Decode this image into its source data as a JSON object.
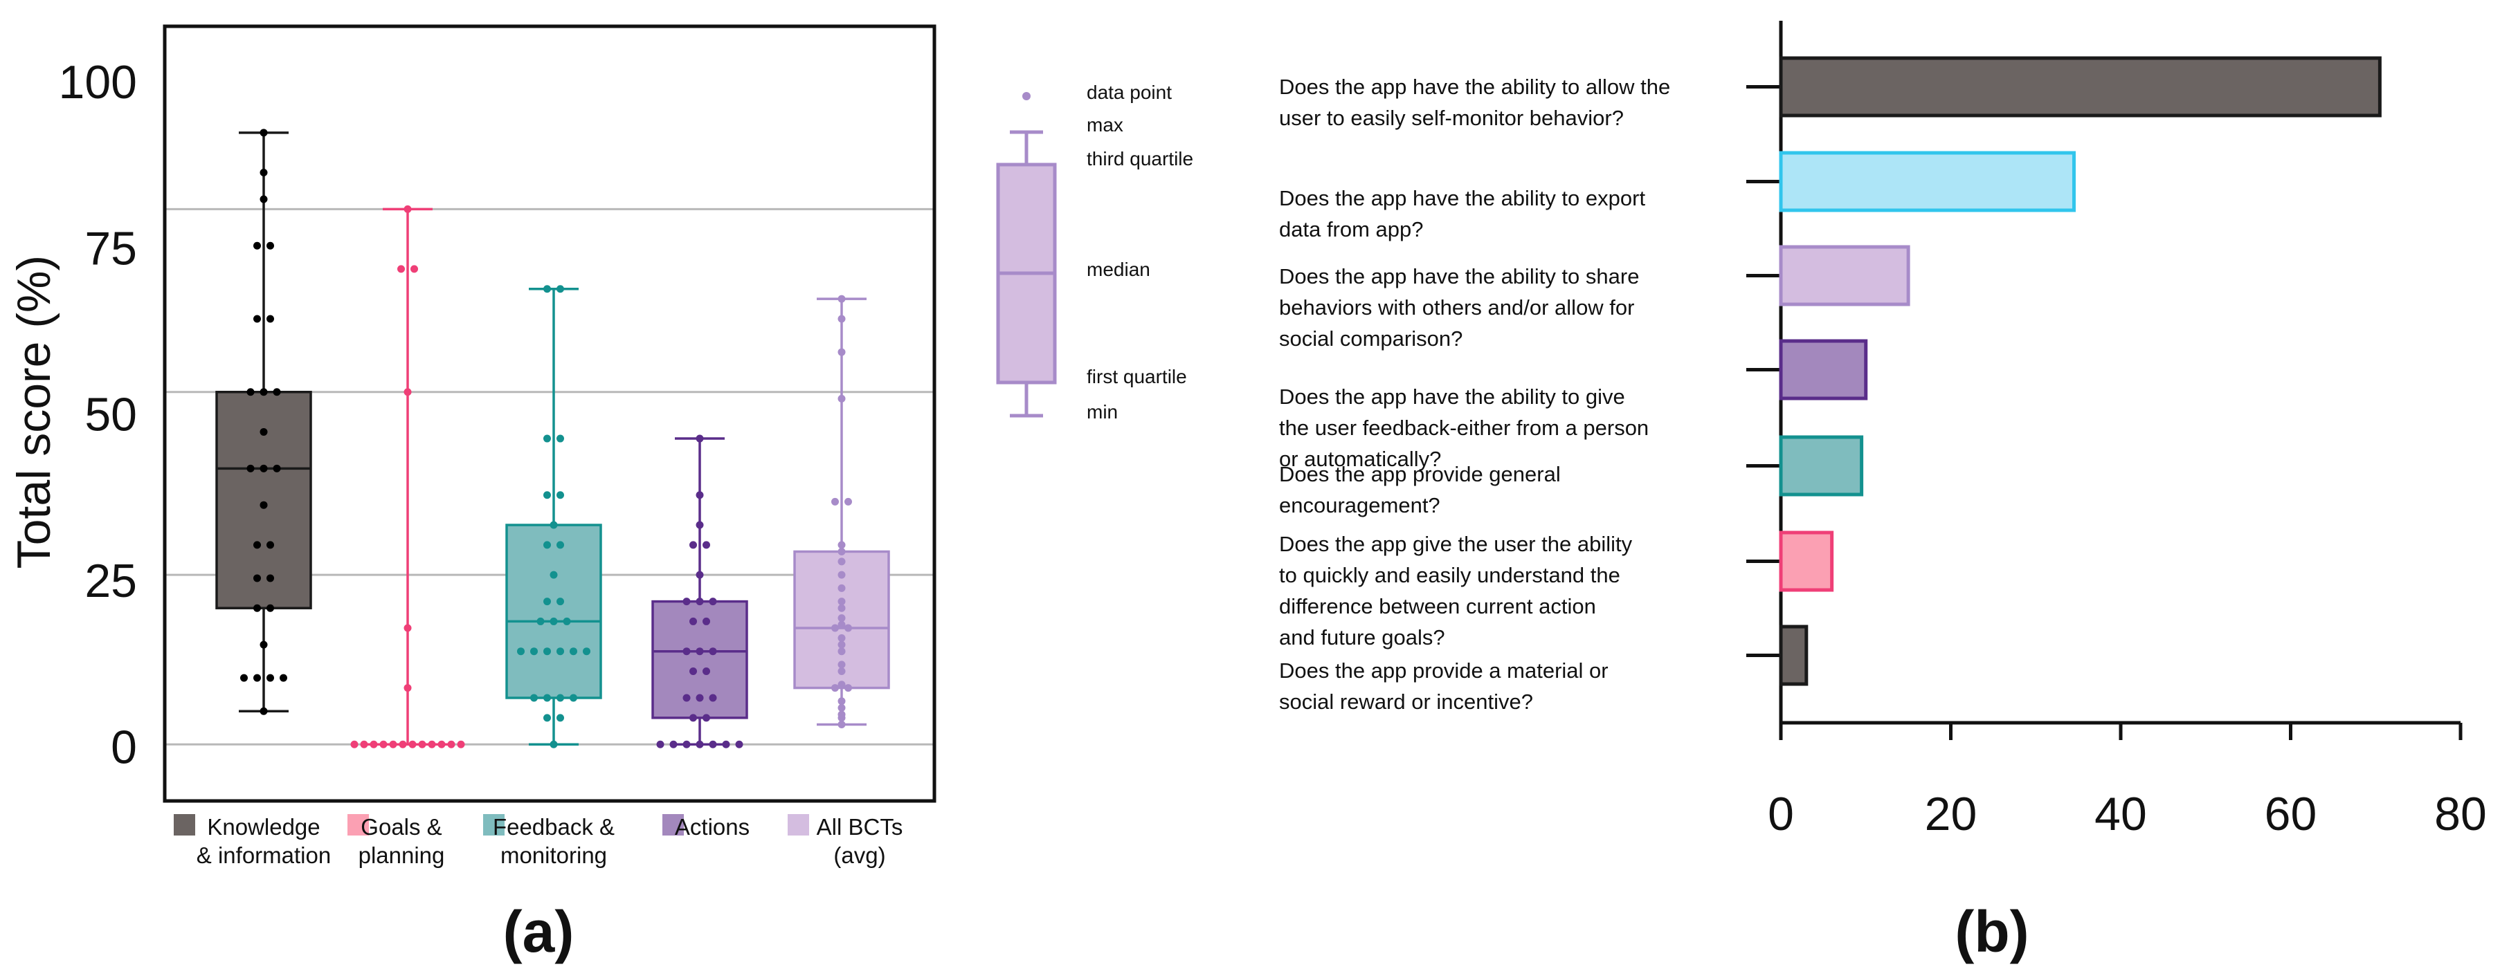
{
  "chart_data": [
    {
      "panel_label": "(a)",
      "type": "box",
      "ylabel": "Total score (%)",
      "ylim": [
        -8.5,
        108
      ],
      "yticks": [
        0,
        25,
        50,
        75,
        100
      ],
      "grid": "horizontal",
      "gridlines": [
        0,
        25.5,
        53,
        80.5
      ],
      "categories": [
        {
          "label_lines": [
            "Knowledge",
            "& information"
          ],
          "color": "#6b6462",
          "edge": "#1a1a1a",
          "dot_color": "#000000",
          "min": 5,
          "q1": 20.5,
          "median": 41.5,
          "q3": 53,
          "max": 92,
          "points": [
            92,
            86,
            82,
            75,
            75,
            64,
            64,
            53,
            53,
            53,
            47,
            41.5,
            41.5,
            41.5,
            36,
            30,
            30,
            25,
            25,
            20.5,
            20.5,
            15,
            10,
            10,
            10,
            10,
            5
          ]
        },
        {
          "label_lines": [
            "Goals &",
            "planning"
          ],
          "color": "#fba0b3",
          "edge": "#ef3f77",
          "dot_color": "#ef3f77",
          "min": 0,
          "q1": 0,
          "median": 0,
          "q3": 0,
          "max": 80.5,
          "points": [
            80.5,
            71.5,
            71.5,
            53,
            17.5,
            8.5,
            0,
            0,
            0,
            0,
            0,
            0,
            0,
            0,
            0,
            0,
            0,
            0
          ]
        },
        {
          "label_lines": [
            "Feedback &",
            "monitoring"
          ],
          "color": "#7fbcbe",
          "edge": "#13918f",
          "dot_color": "#13918f",
          "min": 0,
          "q1": 7,
          "median": 18.5,
          "q3": 33,
          "max": 68.5,
          "points": [
            68.5,
            68.5,
            46,
            46,
            37.5,
            37.5,
            33,
            30,
            30,
            25.5,
            21.5,
            21.5,
            18.5,
            18.5,
            18.5,
            14,
            14,
            14,
            14,
            14,
            14,
            7,
            7,
            7,
            7,
            4,
            4,
            0
          ]
        },
        {
          "label_lines": [
            "Actions",
            ""
          ],
          "color": "#a388bd",
          "edge": "#5a2d8a",
          "dot_color": "#5a2d8a",
          "min": 0,
          "q1": 4,
          "median": 14,
          "q3": 21.5,
          "max": 46,
          "points": [
            46,
            37.5,
            33,
            30,
            30,
            25.5,
            21.5,
            21.5,
            21.5,
            18.5,
            18.5,
            14,
            14,
            14,
            11,
            11,
            7,
            7,
            7,
            4,
            4,
            0,
            0,
            0,
            0,
            0,
            0,
            0
          ]
        },
        {
          "label_lines": [
            "All BCTs",
            "(avg)"
          ],
          "color": "#d4bde0",
          "edge": "#a78bc9",
          "dot_color": "#a78bc9",
          "min": 3,
          "q1": 8.5,
          "median": 17.5,
          "q3": 29,
          "max": 67,
          "points": [
            67,
            64,
            59,
            52,
            36.5,
            36.5,
            30,
            29,
            27.5,
            25.5,
            23.5,
            21.5,
            20.5,
            19,
            18,
            17.5,
            17.5,
            16,
            15,
            14,
            12,
            11,
            9,
            8.5,
            8.5,
            6.5,
            5.5,
            4.5,
            4,
            3
          ]
        }
      ],
      "key": {
        "data_point": "data point",
        "max": "max",
        "third_quartile": "third quartile",
        "median": "median",
        "first_quartile": "first quartile",
        "min": "min"
      }
    },
    {
      "panel_label": "(b)",
      "type": "bar",
      "orientation": "horizontal",
      "xlim": [
        0,
        80
      ],
      "xticks": [
        0,
        20,
        40,
        60,
        80
      ],
      "bars": [
        {
          "label_lines": [
            "Does the app have the ability to allow the",
            "user to easily self-monitor behavior?"
          ],
          "value": 70.5,
          "color": "#6b6462",
          "edge": "#1a1a1a"
        },
        {
          "label_lines": [
            "Does the app have the ability to export",
            "data from app?"
          ],
          "value": 34.5,
          "color": "#ade5f7",
          "edge": "#31c5ec"
        },
        {
          "label_lines": [
            "Does the app have the ability to share",
            "behaviors with others and/or allow for",
            "social comparison?"
          ],
          "value": 15,
          "color": "#d4bde0",
          "edge": "#a78bc9"
        },
        {
          "label_lines": [
            "Does the app have the ability to give",
            "the user feedback-either from a person",
            "or automatically?"
          ],
          "value": 10,
          "color": "#a388bd",
          "edge": "#5a2d8a"
        },
        {
          "label_lines": [
            "Does the app provide general",
            "encouragement?"
          ],
          "value": 9.5,
          "color": "#7fbcbe",
          "edge": "#13918f"
        },
        {
          "label_lines": [
            "Does the app give the user the ability",
            "to quickly and easily understand the",
            "difference between current action",
            "and future goals?"
          ],
          "value": 6,
          "color": "#fba0b3",
          "edge": "#ef3f77"
        },
        {
          "label_lines": [
            "Does the app provide a material or",
            "social reward or incentive?"
          ],
          "value": 3,
          "color": "#6b6462",
          "edge": "#1a1a1a"
        }
      ]
    }
  ]
}
